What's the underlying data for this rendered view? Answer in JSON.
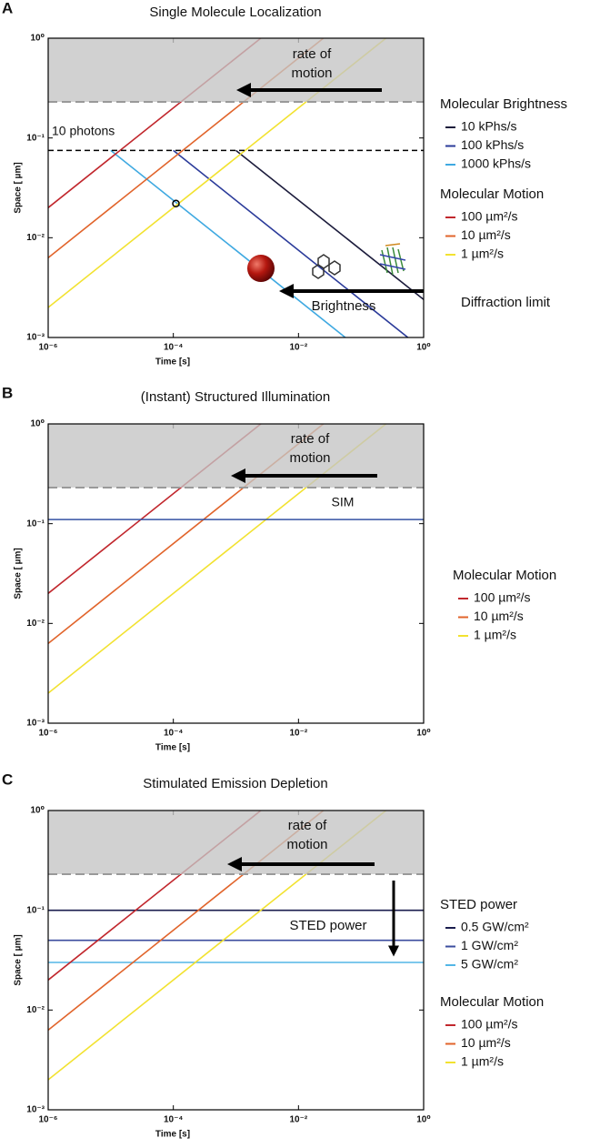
{
  "chart_data": [
    {
      "type": "line",
      "label": "A",
      "title": "Single Molecule Localization",
      "xlabel": "Time [s]",
      "ylabel": "Space [ µm]",
      "xscale": "log",
      "yscale": "log",
      "xlim": [
        1e-06,
        1
      ],
      "ylim": [
        0.001,
        1
      ],
      "xticks": [
        {
          "value": 1e-06,
          "label": "10⁻⁶"
        },
        {
          "value": 0.0001,
          "label": "10⁻⁴"
        },
        {
          "value": 0.01,
          "label": "10⁻²"
        },
        {
          "value": 1,
          "label": "10⁰"
        }
      ],
      "yticks": [
        {
          "value": 0.001,
          "label": "10⁻³"
        },
        {
          "value": 0.01,
          "label": "10⁻²"
        },
        {
          "value": 0.1,
          "label": "10⁻¹"
        },
        {
          "value": 1,
          "label": "10⁰"
        }
      ],
      "shaded": {
        "ylim": [
          0.23,
          1
        ],
        "label": "Diffraction limit"
      },
      "annotation": "rate of motion",
      "pointer": "Brightness",
      "reference_lines": [
        {
          "label": "10 photons",
          "y": 0.075,
          "color": "#000000"
        }
      ],
      "highlight": {
        "x": 0.00011,
        "y": 0.022
      },
      "legend": [
        {
          "title": "Molecular Brightness",
          "series": [
            {
              "name": "10 kPhs/s",
              "color": "#1c1c3c",
              "x": [
                0.001,
                1
              ],
              "values": [
                0.075,
                0.0024
              ]
            },
            {
              "name": "100 kPhs/s",
              "color": "#2b3b9a",
              "x": [
                0.0001,
                0.56
              ],
              "values": [
                0.075,
                0.001
              ]
            },
            {
              "name": "1000 kPhs/s",
              "color": "#3fa9e1",
              "x": [
                1e-05,
                0.056
              ],
              "values": [
                0.075,
                0.001
              ]
            }
          ]
        },
        {
          "title": "Molecular Motion",
          "series": [
            {
              "name": "100 µm²/s",
              "color": "#c1272d",
              "x": [
                1e-06,
                0.0025
              ],
              "values": [
                0.02,
                1
              ]
            },
            {
              "name": "10 µm²/s",
              "color": "#e1642b",
              "x": [
                1e-06,
                0.025
              ],
              "values": [
                0.0063,
                1
              ]
            },
            {
              "name": "1 µm²/s",
              "color": "#f2e230",
              "x": [
                1e-06,
                0.25
              ],
              "values": [
                0.002,
                1
              ]
            }
          ]
        }
      ]
    },
    {
      "type": "line",
      "label": "B",
      "title": "(Instant) Structured Illumination",
      "xlabel": "Time [s]",
      "ylabel": "Space [ µm]",
      "xscale": "log",
      "yscale": "log",
      "xlim": [
        1e-06,
        1
      ],
      "ylim": [
        0.001,
        1
      ],
      "xticks": [
        {
          "value": 1e-06,
          "label": "10⁻⁶"
        },
        {
          "value": 0.0001,
          "label": "10⁻⁴"
        },
        {
          "value": 0.01,
          "label": "10⁻²"
        },
        {
          "value": 1,
          "label": "10⁰"
        }
      ],
      "yticks": [
        {
          "value": 0.001,
          "label": "10⁻³"
        },
        {
          "value": 0.01,
          "label": "10⁻²"
        },
        {
          "value": 0.1,
          "label": "10⁻¹"
        },
        {
          "value": 1,
          "label": "10⁰"
        }
      ],
      "shaded": {
        "ylim": [
          0.23,
          1
        ]
      },
      "annotation": "rate of motion",
      "reference_lines": [
        {
          "label": "SIM",
          "y": 0.11,
          "color": "#3552a3"
        }
      ],
      "legend": [
        {
          "title": "Molecular Motion",
          "series": [
            {
              "name": "100 µm²/s",
              "color": "#c1272d",
              "x": [
                1e-06,
                0.0025
              ],
              "values": [
                0.02,
                1
              ]
            },
            {
              "name": "10 µm²/s",
              "color": "#e1642b",
              "x": [
                1e-06,
                0.025
              ],
              "values": [
                0.0063,
                1
              ]
            },
            {
              "name": "1 µm²/s",
              "color": "#f2e230",
              "x": [
                1e-06,
                0.25
              ],
              "values": [
                0.002,
                1
              ]
            }
          ]
        }
      ]
    },
    {
      "type": "line",
      "label": "C",
      "title": "Stimulated Emission Depletion",
      "xlabel": "Time [s]",
      "ylabel": "Space [ µm]",
      "xscale": "log",
      "yscale": "log",
      "xlim": [
        1e-06,
        1
      ],
      "ylim": [
        0.001,
        1
      ],
      "xticks": [
        {
          "value": 1e-06,
          "label": "10⁻⁶"
        },
        {
          "value": 0.0001,
          "label": "10⁻⁴"
        },
        {
          "value": 0.01,
          "label": "10⁻²"
        },
        {
          "value": 1,
          "label": "10⁰"
        }
      ],
      "yticks": [
        {
          "value": 0.001,
          "label": "10⁻³"
        },
        {
          "value": 0.01,
          "label": "10⁻²"
        },
        {
          "value": 0.1,
          "label": "10⁻¹"
        },
        {
          "value": 1,
          "label": "10⁰"
        }
      ],
      "shaded": {
        "ylim": [
          0.23,
          1
        ]
      },
      "annotation": "rate of motion",
      "pointer": "STED power",
      "legend": [
        {
          "title": "STED power",
          "series": [
            {
              "name": "0.5 GW/cm²",
              "color": "#1a1d4d",
              "x": [
                1e-06,
                1
              ],
              "values": [
                0.1,
                0.1
              ]
            },
            {
              "name": "1 GW/cm²",
              "color": "#3b4c9e",
              "x": [
                1e-06,
                1
              ],
              "values": [
                0.05,
                0.05
              ]
            },
            {
              "name": "5 GW/cm²",
              "color": "#53b6e6",
              "x": [
                1e-06,
                1
              ],
              "values": [
                0.03,
                0.03
              ]
            }
          ]
        },
        {
          "title": "Molecular Motion",
          "series": [
            {
              "name": "100 µm²/s",
              "color": "#c1272d",
              "x": [
                1e-06,
                0.0025
              ],
              "values": [
                0.02,
                1
              ]
            },
            {
              "name": "10 µm²/s",
              "color": "#e1642b",
              "x": [
                1e-06,
                0.025
              ],
              "values": [
                0.0063,
                1
              ]
            },
            {
              "name": "1 µm²/s",
              "color": "#f2e230",
              "x": [
                1e-06,
                0.25
              ],
              "values": [
                0.002,
                1
              ]
            }
          ]
        }
      ]
    }
  ]
}
